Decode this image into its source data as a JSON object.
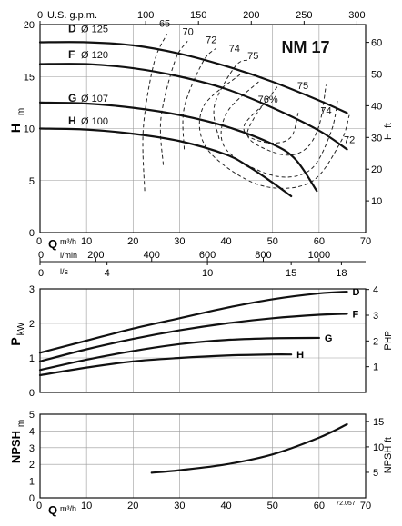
{
  "chart_data": [
    {
      "type": "line",
      "model": "NM 17",
      "ylabel": "H",
      "yunit": "m",
      "ylabel_right": "H",
      "yunit_right": "ft",
      "xlabel_top": "U.S. g.p.m.",
      "xlabel_bottom": "Q",
      "xunit_bottom": "m³/h",
      "x_ticks": [
        "0",
        "10",
        "20",
        "30",
        "40",
        "50",
        "60",
        "70"
      ],
      "y_ticks": [
        "0",
        "5",
        "10",
        "15",
        "20"
      ],
      "top_ticks": [
        "0",
        "100",
        "150",
        "200",
        "250",
        "300"
      ],
      "right_ticks": [
        "10",
        "20",
        "30",
        "40",
        "50",
        "60"
      ],
      "lmin_label": "l/min",
      "lmin_ticks": [
        "0",
        "200",
        "400",
        "600",
        "800",
        "1000"
      ],
      "ls_label": "l/s",
      "ls_ticks": [
        "0",
        "4",
        "10",
        "15",
        "18"
      ],
      "xlim": [
        0,
        70
      ],
      "ylim": [
        0,
        20
      ],
      "series": [
        {
          "name": "D",
          "diameter": "Ø 125",
          "x": [
            0,
            10,
            20,
            30,
            40,
            50,
            60,
            66
          ],
          "y": [
            18.3,
            18.3,
            18.0,
            17.2,
            16.0,
            14.5,
            12.7,
            11.5
          ]
        },
        {
          "name": "F",
          "diameter": "Ø 120",
          "x": [
            0,
            10,
            20,
            30,
            40,
            50,
            60,
            66
          ],
          "y": [
            16.2,
            16.2,
            15.8,
            15.0,
            13.8,
            12.0,
            9.8,
            8.0
          ]
        },
        {
          "name": "G",
          "diameter": "Ø 107",
          "x": [
            0,
            10,
            20,
            30,
            40,
            50,
            55,
            59.5
          ],
          "y": [
            12.5,
            12.4,
            12.0,
            11.3,
            10.2,
            8.5,
            7.0,
            4.0
          ]
        },
        {
          "name": "H",
          "diameter": "Ø 100",
          "x": [
            0,
            10,
            20,
            30,
            40,
            45,
            50,
            54
          ],
          "y": [
            10.0,
            9.9,
            9.5,
            8.8,
            7.5,
            6.3,
            4.8,
            3.5
          ]
        }
      ],
      "efficiency_labels": [
        "65",
        "70",
        "72",
        "74",
        "75",
        "75",
        "76%",
        "74",
        "72"
      ]
    },
    {
      "type": "line",
      "ylabel": "P",
      "yunit": "kW",
      "ylabel_right": "P",
      "yunit_right": "HP",
      "xlim": [
        0,
        70
      ],
      "ylim": [
        0,
        3
      ],
      "y_ticks": [
        "0",
        "1",
        "2",
        "3"
      ],
      "right_ticks": [
        "1",
        "2",
        "3",
        "4"
      ],
      "series": [
        {
          "name": "D",
          "x": [
            0,
            10,
            20,
            30,
            40,
            50,
            60,
            66
          ],
          "y": [
            1.15,
            1.5,
            1.85,
            2.15,
            2.45,
            2.7,
            2.87,
            2.92
          ]
        },
        {
          "name": "F",
          "x": [
            0,
            10,
            20,
            30,
            40,
            50,
            60,
            66
          ],
          "y": [
            0.9,
            1.25,
            1.55,
            1.8,
            2.0,
            2.15,
            2.25,
            2.28
          ]
        },
        {
          "name": "G",
          "x": [
            0,
            10,
            20,
            30,
            40,
            50,
            60
          ],
          "y": [
            0.65,
            0.95,
            1.2,
            1.4,
            1.52,
            1.57,
            1.58
          ]
        },
        {
          "name": "H",
          "x": [
            0,
            10,
            20,
            30,
            40,
            50,
            54
          ],
          "y": [
            0.5,
            0.72,
            0.9,
            1.0,
            1.07,
            1.1,
            1.1
          ]
        }
      ]
    },
    {
      "type": "line",
      "ylabel": "NPSH",
      "yunit": "m",
      "ylabel_right": "NPSH",
      "yunit_right": "ft",
      "xlabel": "Q",
      "xunit": "m³/h",
      "doc_code": "72.057",
      "xlim": [
        0,
        70
      ],
      "ylim": [
        0,
        5
      ],
      "x_ticks": [
        "0",
        "10",
        "20",
        "30",
        "40",
        "50",
        "60",
        "70"
      ],
      "y_ticks": [
        "0",
        "1",
        "2",
        "3",
        "4",
        "5"
      ],
      "right_ticks": [
        "5",
        "10",
        "15"
      ],
      "series": [
        {
          "x": [
            24,
            30,
            40,
            50,
            60,
            66
          ],
          "y": [
            1.5,
            1.65,
            2.0,
            2.6,
            3.6,
            4.4
          ]
        }
      ]
    }
  ]
}
